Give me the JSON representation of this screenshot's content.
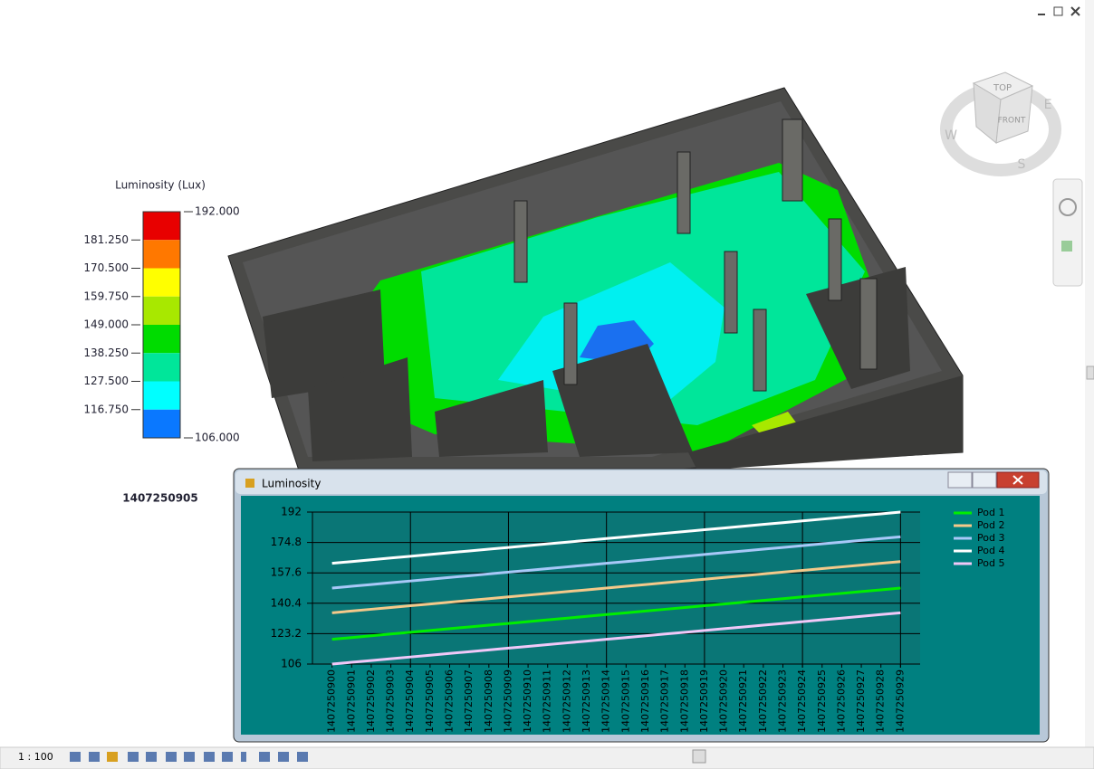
{
  "legend": {
    "title": "Luminosity (Lux)",
    "labels": [
      "192.000",
      "181.250",
      "170.500",
      "159.750",
      "149.000",
      "138.250",
      "127.500",
      "116.750",
      "106.000"
    ],
    "colors": [
      "#e80000",
      "#ff7800",
      "#ffff00",
      "#a8e800",
      "#00dc00",
      "#00e69a",
      "#00ffff",
      "#0a78ff"
    ]
  },
  "timestamp": "1407250905",
  "viewcube": {
    "top": "TOP",
    "front": "FRONT",
    "w": "W",
    "e": "E",
    "s": "S"
  },
  "status_bar": {
    "scale": "1 : 100"
  },
  "chart_window": {
    "title": "Luminosity"
  },
  "chart_data": {
    "type": "line",
    "categories": [
      "1407250900",
      "1407250901",
      "1407250902",
      "1407250903",
      "1407250904",
      "1407250905",
      "1407250906",
      "1407250907",
      "1407250908",
      "1407250909",
      "1407250910",
      "1407250911",
      "1407250912",
      "1407250913",
      "1407250914",
      "1407250915",
      "1407250916",
      "1407250917",
      "1407250918",
      "1407250919",
      "1407250920",
      "1407250921",
      "1407250922",
      "1407250923",
      "1407250924",
      "1407250925",
      "1407250926",
      "1407250927",
      "1407250928",
      "1407250929"
    ],
    "ylim": [
      106,
      192
    ],
    "yticks": [
      106,
      123.2,
      140.4,
      157.6,
      174.8,
      192
    ],
    "grid": true,
    "series": [
      {
        "name": "Pod 1",
        "color": "#00ee00",
        "values": [
          120,
          121,
          122,
          123,
          124,
          125,
          126,
          127,
          128,
          129,
          130,
          131,
          132,
          133,
          134,
          135,
          136,
          137,
          138,
          139,
          140,
          141,
          142,
          143,
          144,
          145,
          146,
          147,
          148,
          149
        ]
      },
      {
        "name": "Pod 2",
        "color": "#f4c98a",
        "values": [
          135,
          136,
          137,
          138,
          139,
          140,
          141,
          142,
          143,
          144,
          145,
          146,
          147,
          148,
          149,
          150,
          151,
          152,
          153,
          154,
          155,
          156,
          157,
          158,
          159,
          160,
          161,
          162,
          163,
          164
        ]
      },
      {
        "name": "Pod 3",
        "color": "#a8c8f8",
        "values": [
          149,
          150,
          151,
          152,
          153,
          154,
          155,
          156,
          157,
          158,
          159,
          160,
          161,
          162,
          163,
          164,
          165,
          166,
          167,
          168,
          169,
          170,
          171,
          172,
          173,
          174,
          175,
          176,
          177,
          178
        ]
      },
      {
        "name": "Pod 4",
        "color": "#ffffff",
        "values": [
          163,
          164,
          165,
          166,
          167,
          168,
          169,
          170,
          171,
          172,
          173,
          174,
          175,
          176,
          177,
          178,
          179,
          180,
          181,
          182,
          183,
          184,
          185,
          186,
          187,
          188,
          189,
          190,
          191,
          192
        ]
      },
      {
        "name": "Pod 5",
        "color": "#f0c8f8",
        "values": [
          106,
          107,
          108,
          109,
          110,
          111,
          112,
          113,
          114,
          115,
          116,
          117,
          118,
          119,
          120,
          121,
          122,
          123,
          124,
          125,
          126,
          127,
          128,
          129,
          130,
          131,
          132,
          133,
          134,
          135
        ]
      }
    ]
  }
}
